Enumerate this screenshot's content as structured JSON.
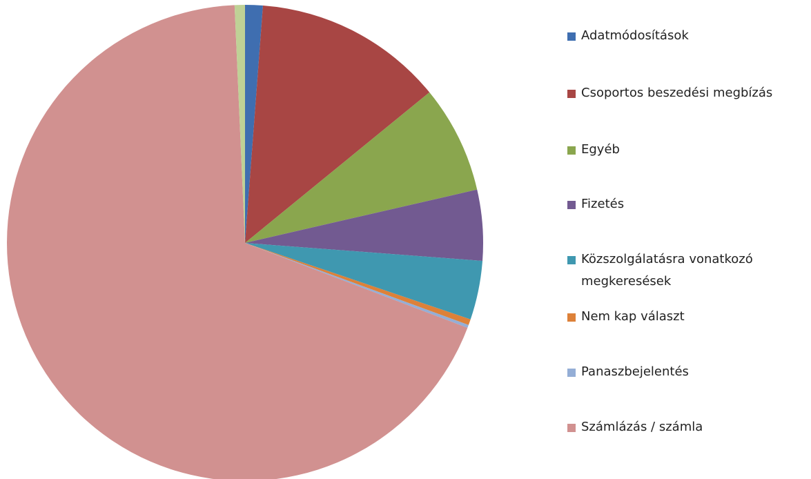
{
  "chart_data": {
    "type": "pie",
    "categories": [
      "Adatmódosítások",
      "Csoportos beszedési megbízás",
      "Egyéb",
      "Fizetés",
      "Közszolgálatásra vonatkozó megkeresések",
      "Nem kap választ",
      "Panaszbejelentés",
      "Számlázás / számla",
      null
    ],
    "values": [
      1.2,
      12.9,
      7.3,
      4.8,
      4.0,
      0.4,
      0.2,
      68.5,
      0.7
    ],
    "colors": [
      "#3f6eb0",
      "#a84644",
      "#8aa64e",
      "#725a91",
      "#3f98b0",
      "#dd8139",
      "#94aed6",
      "#d19190",
      "#bfd196"
    ],
    "legend": "right"
  }
}
